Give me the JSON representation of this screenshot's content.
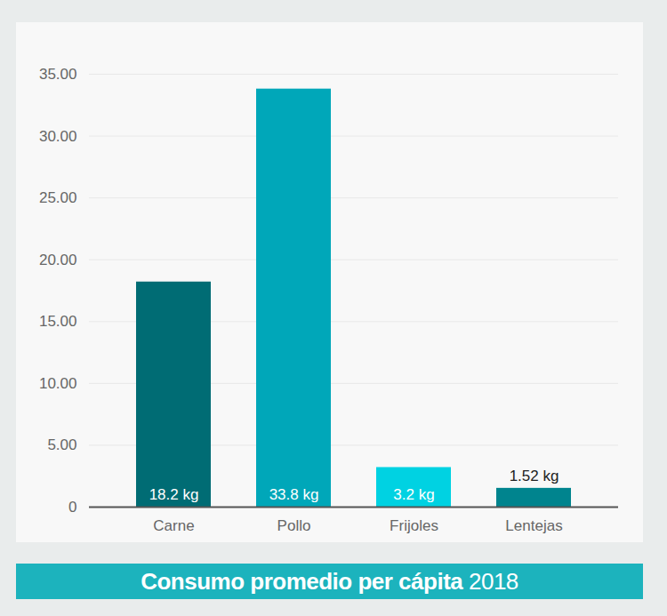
{
  "chart_data": {
    "type": "bar",
    "title": "Consumo promedio per cápita 2018",
    "categories": [
      "Carne",
      "Pollo",
      "Frijoles",
      "Lentejas"
    ],
    "values": [
      18.2,
      33.8,
      3.2,
      1.52
    ],
    "value_labels": [
      "18.2 kg",
      "33.8 kg",
      "3.2 kg",
      "1.52 kg"
    ],
    "colors": [
      "#006c74",
      "#00a7b9",
      "#00d2e2",
      "#00848e"
    ],
    "ylim": [
      0,
      35
    ],
    "yticks": [
      0,
      {
        "value": 5,
        "label": "5.00"
      },
      {
        "value": 10,
        "label": "10.00"
      },
      {
        "value": 15,
        "label": "15.00"
      },
      {
        "value": 20,
        "label": "20.00"
      },
      {
        "value": 25,
        "label": "25.00"
      },
      {
        "value": 30,
        "label": "30.00"
      },
      {
        "value": 35,
        "label": "35.00"
      }
    ],
    "grid": true,
    "data_labels": true
  }
}
